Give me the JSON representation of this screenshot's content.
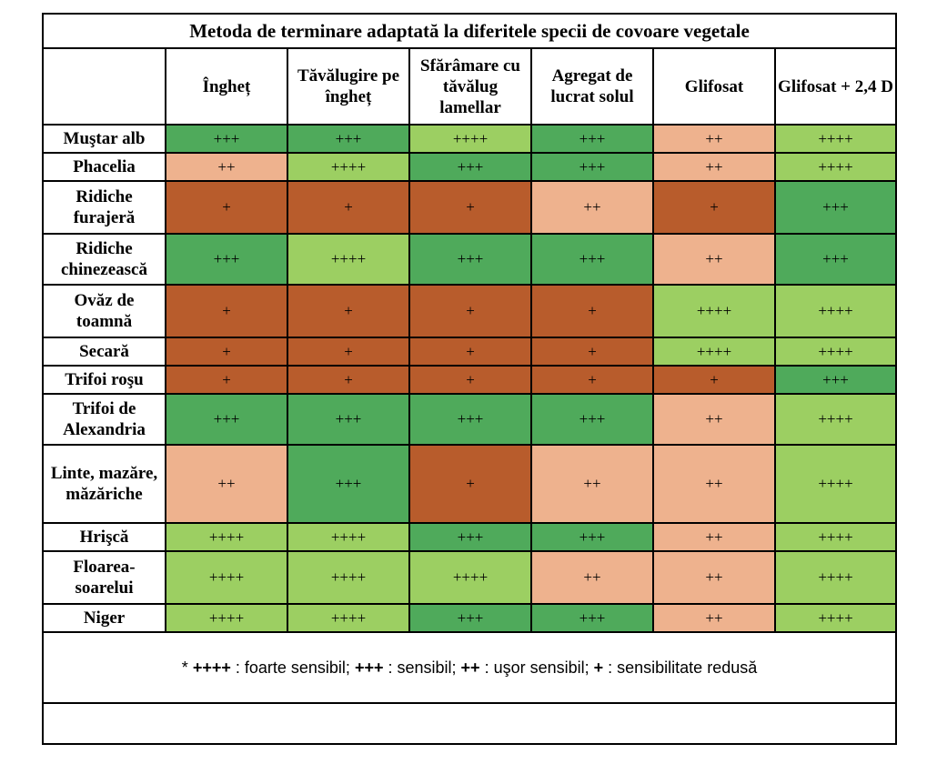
{
  "title": "Metoda de terminare adaptată la diferitele specii de covoare vegetale",
  "columns": [
    "Îngheț",
    "Tăvălugire pe îngheț",
    "Sfărâmare cu tăvălug lamellar",
    "Agregat de lucrat solul",
    "Glifosat",
    "Glifosat + 2,4 D"
  ],
  "colors": {
    "++++": "#9ccf62",
    "+++": "#4faa5b",
    "++": "#eeb28e",
    "+": "#b85c2c"
  },
  "rows": [
    {
      "label": "Muştar alb",
      "values": [
        "+++",
        "+++",
        "++++",
        "+++",
        "++",
        "++++"
      ]
    },
    {
      "label": "Phacelia",
      "values": [
        "++",
        "++++",
        "+++",
        "+++",
        "++",
        "++++"
      ]
    },
    {
      "label": "Ridiche furajeră",
      "values": [
        "+",
        "+",
        "+",
        "++",
        "+",
        "+++"
      ]
    },
    {
      "label": "Ridiche chinezească",
      "values": [
        "+++",
        "++++",
        "+++",
        "+++",
        "++",
        "+++"
      ]
    },
    {
      "label": "Ovăz de toamnă",
      "values": [
        "+",
        "+",
        "+",
        "+",
        "++++",
        "++++"
      ]
    },
    {
      "label": "Secară",
      "values": [
        "+",
        "+",
        "+",
        "+",
        "++++",
        "++++"
      ]
    },
    {
      "label": "Trifoi roşu",
      "values": [
        "+",
        "+",
        "+",
        "+",
        "+",
        "+++"
      ]
    },
    {
      "label": "Trifoi de Alexandria",
      "values": [
        "+++",
        "+++",
        "+++",
        "+++",
        "++",
        "++++"
      ]
    },
    {
      "label": "Linte, mazăre, măzăriche",
      "values": [
        "++",
        "+++",
        "+",
        "++",
        "++",
        "++++"
      ]
    },
    {
      "label": "Hrişcă",
      "values": [
        "++++",
        "++++",
        "+++",
        "+++",
        "++",
        "++++"
      ]
    },
    {
      "label": "Floarea-soarelui",
      "values": [
        "++++",
        "++++",
        "++++",
        "++",
        "++",
        "++++"
      ]
    },
    {
      "label": "Niger",
      "values": [
        "++++",
        "++++",
        "+++",
        "+++",
        "++",
        "++++"
      ]
    }
  ],
  "legend": {
    "prefix": "* ",
    "k4": "++++",
    "t4": " : foarte sensibil; ",
    "k3": "+++",
    "t3": " : sensibil; ",
    "k2": "++",
    "t2": " : uşor sensibil; ",
    "k1": "+",
    "t1": " : sensibilitate redusă"
  }
}
